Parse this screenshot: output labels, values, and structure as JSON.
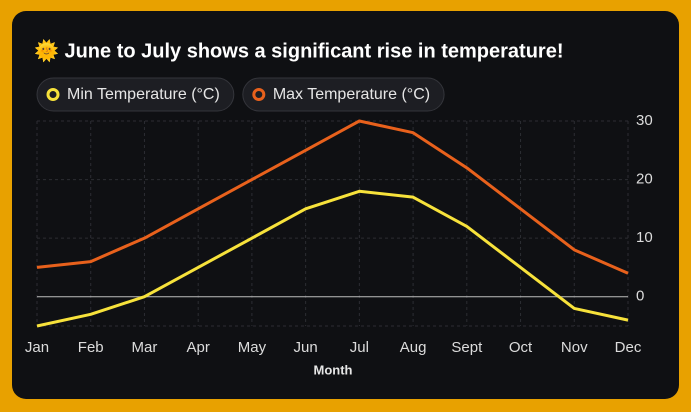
{
  "chart_data": {
    "type": "line",
    "title": "🌞 June to July shows a significant rise in temperature!",
    "x_label": "Month",
    "categories": [
      "Jan",
      "Feb",
      "Mar",
      "Apr",
      "May",
      "Jun",
      "Jul",
      "Aug",
      "Sept",
      "Oct",
      "Nov",
      "Dec"
    ],
    "series": [
      {
        "name": "Min Temperature (°C)",
        "color": "#f7e23b",
        "values": [
          -5,
          -3,
          0,
          5,
          10,
          15,
          18,
          17,
          12,
          5,
          -2,
          -4
        ]
      },
      {
        "name": "Max Temperature (°C)",
        "color": "#e8611c",
        "values": [
          5,
          6,
          10,
          15,
          20,
          25,
          30,
          28,
          22,
          15,
          8,
          4
        ]
      }
    ],
    "ylim": [
      -5,
      30
    ],
    "yticks": [
      0,
      10,
      20,
      30
    ],
    "grid": true
  }
}
